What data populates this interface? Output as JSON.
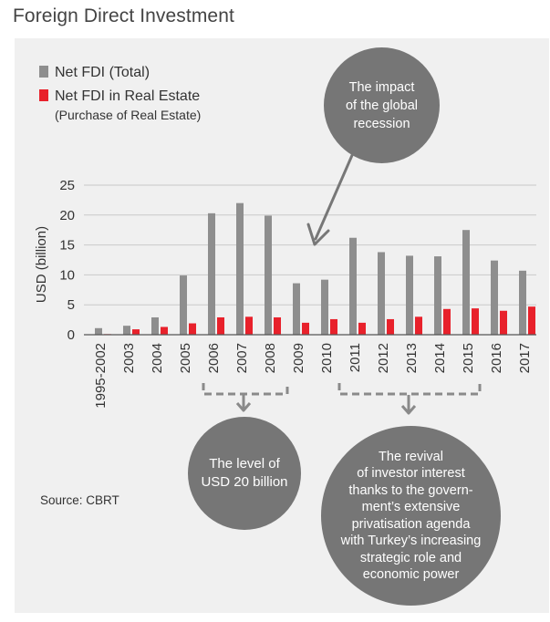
{
  "page_title": "Foreign Direct Investment",
  "source": "Source: CBRT",
  "colors": {
    "total": "#8e8e8e",
    "real_estate": "#e8212b",
    "bubble": "#767676",
    "axis": "#333333",
    "grid": "#c9c9c9"
  },
  "chart_data": {
    "type": "bar",
    "title": "Foreign Direct Investment",
    "ylabel": "USD (billion)",
    "xlabel": "",
    "ylim": [
      0,
      25
    ],
    "yticks": [
      0,
      5,
      10,
      15,
      20,
      25
    ],
    "grid": true,
    "legend_position": "top-left",
    "categories": [
      "1995-2002",
      "2003",
      "2004",
      "2005",
      "2006",
      "2007",
      "2008",
      "2009",
      "2010",
      "2011",
      "2012",
      "2013",
      "2014",
      "2015",
      "2016",
      "2017"
    ],
    "series": [
      {
        "name": "Net FDI (Total)",
        "values": [
          1.1,
          1.5,
          2.9,
          9.9,
          20.3,
          22.0,
          19.9,
          8.6,
          9.2,
          16.2,
          13.8,
          13.2,
          13.1,
          17.5,
          12.4,
          10.7
        ]
      },
      {
        "name": "Net FDI in Real Estate",
        "subtitle": "(Purchase of Real Estate)",
        "values": [
          0.1,
          0.9,
          1.3,
          1.9,
          2.9,
          3.0,
          2.9,
          2.0,
          2.6,
          2.0,
          2.6,
          3.0,
          4.3,
          4.4,
          4.0,
          4.7
        ]
      }
    ],
    "annotations": [
      {
        "id": "recession",
        "text": "The impact\nof the global\nrecession"
      },
      {
        "id": "level20",
        "text": "The level of\nUSD 20 billion"
      },
      {
        "id": "revival",
        "text": "The revival\nof investor interest\nthanks to the govern-\nment’s extensive\nprivatisation agenda\nwith Turkey’s increasing\nstrategic role and\neconomic power"
      }
    ]
  }
}
